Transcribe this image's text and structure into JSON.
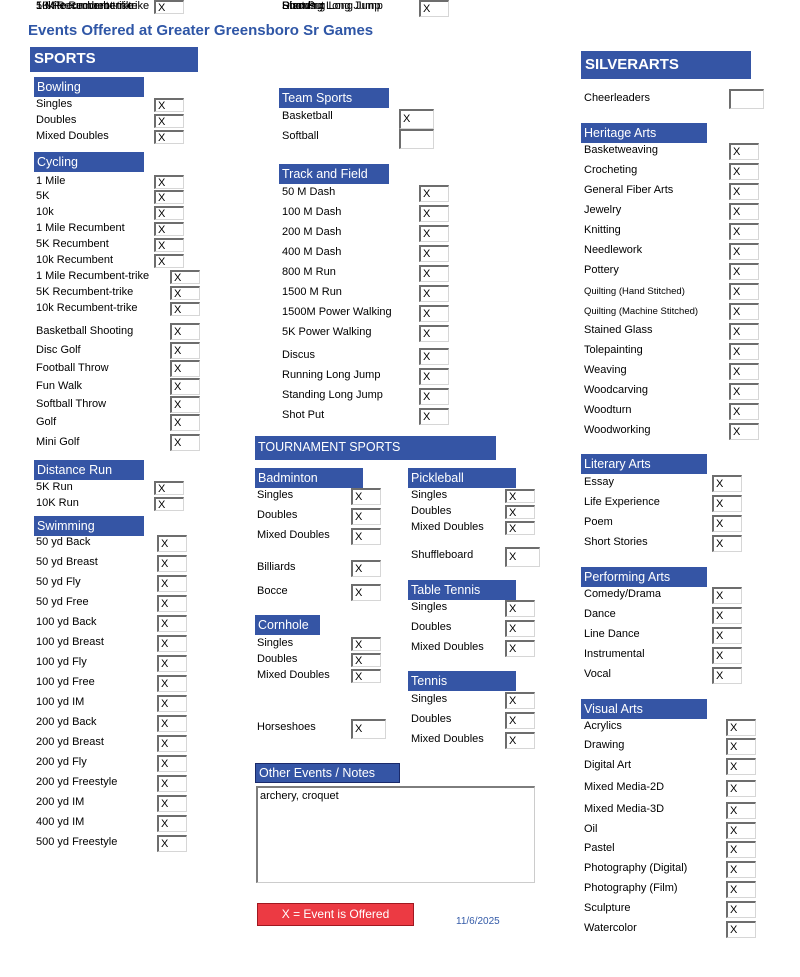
{
  "title": "Events Offered at Greater Greensboro Sr Games",
  "sports_header": "SPORTS",
  "silverarts_header": "SILVERARTS",
  "tournament_header": "TOURNAMENT SPORTS",
  "mark": "X",
  "groups": {
    "bowling": {
      "label": "Bowling",
      "items": [
        {
          "name": "Singles",
          "value": "X"
        },
        {
          "name": "Doubles",
          "value": "X"
        },
        {
          "name": "Mixed Doubles",
          "value": "X"
        }
      ]
    },
    "cycling": {
      "label": "Cycling",
      "items": [
        {
          "name": "1 Mile",
          "value": "X"
        },
        {
          "name": "5K",
          "value": "X"
        },
        {
          "name": "10k",
          "value": "X"
        },
        {
          "name": "1 Mile Recumbent",
          "value": "X"
        },
        {
          "name": "5K Recumbent",
          "value": "X"
        },
        {
          "name": "10k Recumbent",
          "value": "X"
        },
        {
          "name": "1 Mile Recumbent-trike",
          "value": "X"
        },
        {
          "name": "5K Recumbent-trike",
          "value": "X"
        },
        {
          "name": "10k Recumbent-trike",
          "value": "X"
        }
      ]
    },
    "misc": {
      "items": [
        {
          "name": "Basketball Shooting",
          "value": "X"
        },
        {
          "name": "Disc Golf",
          "value": "X"
        },
        {
          "name": "Football Throw",
          "value": "X"
        },
        {
          "name": "Fun Walk",
          "value": "X"
        },
        {
          "name": "Softball Throw",
          "value": "X"
        },
        {
          "name": "Golf",
          "value": "X"
        },
        {
          "name": "Mini Golf",
          "value": "X"
        }
      ]
    },
    "distance": {
      "label": "Distance Run",
      "items": [
        {
          "name": "5K Run",
          "value": "X"
        },
        {
          "name": "10K Run",
          "value": "X"
        }
      ]
    },
    "swimming": {
      "label": "Swimming",
      "items": [
        {
          "name": "50 yd Back",
          "value": "X"
        },
        {
          "name": "50 yd Breast",
          "value": "X"
        },
        {
          "name": "50 yd Fly",
          "value": "X"
        },
        {
          "name": "50 yd Free",
          "value": "X"
        },
        {
          "name": "100 yd Back",
          "value": "X"
        },
        {
          "name": "100 yd Breast",
          "value": "X"
        },
        {
          "name": "100 yd Fly",
          "value": "X"
        },
        {
          "name": "100 yd Free",
          "value": "X"
        },
        {
          "name": "100 yd IM",
          "value": "X"
        },
        {
          "name": "200 yd Back",
          "value": "X"
        },
        {
          "name": "200 yd Breast",
          "value": "X"
        },
        {
          "name": "200 yd Fly",
          "value": "X"
        },
        {
          "name": "200 yd Freestyle",
          "value": "X"
        },
        {
          "name": "200 yd IM",
          "value": "X"
        },
        {
          "name": "400 yd IM",
          "value": "X"
        },
        {
          "name": "500 yd Freestyle",
          "value": "X"
        }
      ]
    },
    "team": {
      "label": "Team Sports",
      "items": [
        {
          "name": "Basketball",
          "value": "X"
        },
        {
          "name": "Softball",
          "value": ""
        }
      ]
    },
    "track": {
      "label": "Track and Field",
      "items": [
        {
          "name": "50 M Dash",
          "value": "X"
        },
        {
          "name": "100 M Dash",
          "value": "X"
        },
        {
          "name": "200 M Dash",
          "value": "X"
        },
        {
          "name": "400 M Dash",
          "value": "X"
        },
        {
          "name": "800 M Run",
          "value": "X"
        },
        {
          "name": "1500 M Run",
          "value": "X"
        },
        {
          "name": "1500M Power Walking",
          "value": "X"
        },
        {
          "name": "5K Power Walking",
          "value": "X"
        },
        {
          "name": "Discus",
          "value": "X"
        },
        {
          "name": "Running Long Jump",
          "value": "X"
        },
        {
          "name": "Standing Long Jump",
          "value": "X"
        },
        {
          "name": "Shot Put",
          "value": "X"
        }
      ]
    },
    "badminton": {
      "label": "Badminton",
      "items": [
        {
          "name": "Singles",
          "value": "X"
        },
        {
          "name": "Doubles",
          "value": "X"
        },
        {
          "name": "Mixed Doubles",
          "value": "X"
        }
      ]
    },
    "billiards": {
      "name": "Billiards",
      "value": "X"
    },
    "bocce": {
      "name": "Bocce",
      "value": "X"
    },
    "cornhole": {
      "label": "Cornhole",
      "items": [
        {
          "name": "Singles",
          "value": "X"
        },
        {
          "name": "Doubles",
          "value": "X"
        },
        {
          "name": "Mixed Doubles",
          "value": "X"
        }
      ]
    },
    "horseshoes": {
      "name": "Horseshoes",
      "value": "X"
    },
    "pickleball": {
      "label": "Pickleball",
      "items": [
        {
          "name": "Singles",
          "value": "X"
        },
        {
          "name": "Doubles",
          "value": "X"
        },
        {
          "name": "Mixed Doubles",
          "value": "X"
        }
      ]
    },
    "shuffleboard": {
      "name": "Shuffleboard",
      "value": "X"
    },
    "tabletennis": {
      "label": "Table Tennis",
      "items": [
        {
          "name": "Singles",
          "value": "X"
        },
        {
          "name": "Doubles",
          "value": "X"
        },
        {
          "name": "Mixed Doubles",
          "value": "X"
        }
      ]
    },
    "tennis": {
      "label": "Tennis",
      "items": [
        {
          "name": "Singles",
          "value": "X"
        },
        {
          "name": "Doubles",
          "value": "X"
        },
        {
          "name": "Mixed Doubles",
          "value": "X"
        }
      ]
    },
    "cheerleaders": {
      "name": "Cheerleaders",
      "value": ""
    },
    "heritage": {
      "label": "Heritage Arts",
      "items": [
        {
          "name": "Basketweaving",
          "value": "X"
        },
        {
          "name": "Crocheting",
          "value": "X"
        },
        {
          "name": "General Fiber Arts",
          "value": "X"
        },
        {
          "name": "Jewelry",
          "value": "X"
        },
        {
          "name": "Knitting",
          "value": "X"
        },
        {
          "name": "Needlework",
          "value": "X"
        },
        {
          "name": "Pottery",
          "value": "X"
        },
        {
          "name": "Quilting (Hand Stitched)",
          "value": "X"
        },
        {
          "name": "Quilting (Machine Stitched)",
          "value": "X"
        },
        {
          "name": "Stained Glass",
          "value": "X"
        },
        {
          "name": "Tolepainting",
          "value": "X"
        },
        {
          "name": "Weaving",
          "value": "X"
        },
        {
          "name": "Woodcarving",
          "value": "X"
        },
        {
          "name": "Woodturn",
          "value": "X"
        },
        {
          "name": "Woodworking",
          "value": "X"
        }
      ]
    },
    "literary": {
      "label": "Literary Arts",
      "items": [
        {
          "name": "Essay",
          "value": "X"
        },
        {
          "name": "Life Experience",
          "value": "X"
        },
        {
          "name": "Poem",
          "value": "X"
        },
        {
          "name": "Short Stories",
          "value": "X"
        }
      ]
    },
    "performing": {
      "label": "Performing Arts",
      "items": [
        {
          "name": "Comedy/Drama",
          "value": "X"
        },
        {
          "name": "Dance",
          "value": "X"
        },
        {
          "name": "Line Dance",
          "value": "X"
        },
        {
          "name": "Instrumental",
          "value": "X"
        },
        {
          "name": "Vocal",
          "value": "X"
        }
      ]
    },
    "visual": {
      "label": "Visual Arts",
      "items": [
        {
          "name": "Acrylics",
          "value": "X"
        },
        {
          "name": "Drawing",
          "value": "X"
        },
        {
          "name": "Digital Art",
          "value": "X"
        },
        {
          "name": "Mixed Media-2D",
          "value": "X"
        },
        {
          "name": "Mixed Media-3D",
          "value": "X"
        },
        {
          "name": "Oil",
          "value": "X"
        },
        {
          "name": "Pastel",
          "value": "X"
        },
        {
          "name": "Photography (Digital)",
          "value": "X"
        },
        {
          "name": "Photography (Film)",
          "value": "X"
        },
        {
          "name": "Sculpture",
          "value": "X"
        },
        {
          "name": "Watercolor",
          "value": "X"
        }
      ]
    }
  },
  "notes": {
    "label": "Other Events / Notes",
    "text": "archery, croquet"
  },
  "legend": "X = Event is Offered",
  "date": "11/6/2025"
}
